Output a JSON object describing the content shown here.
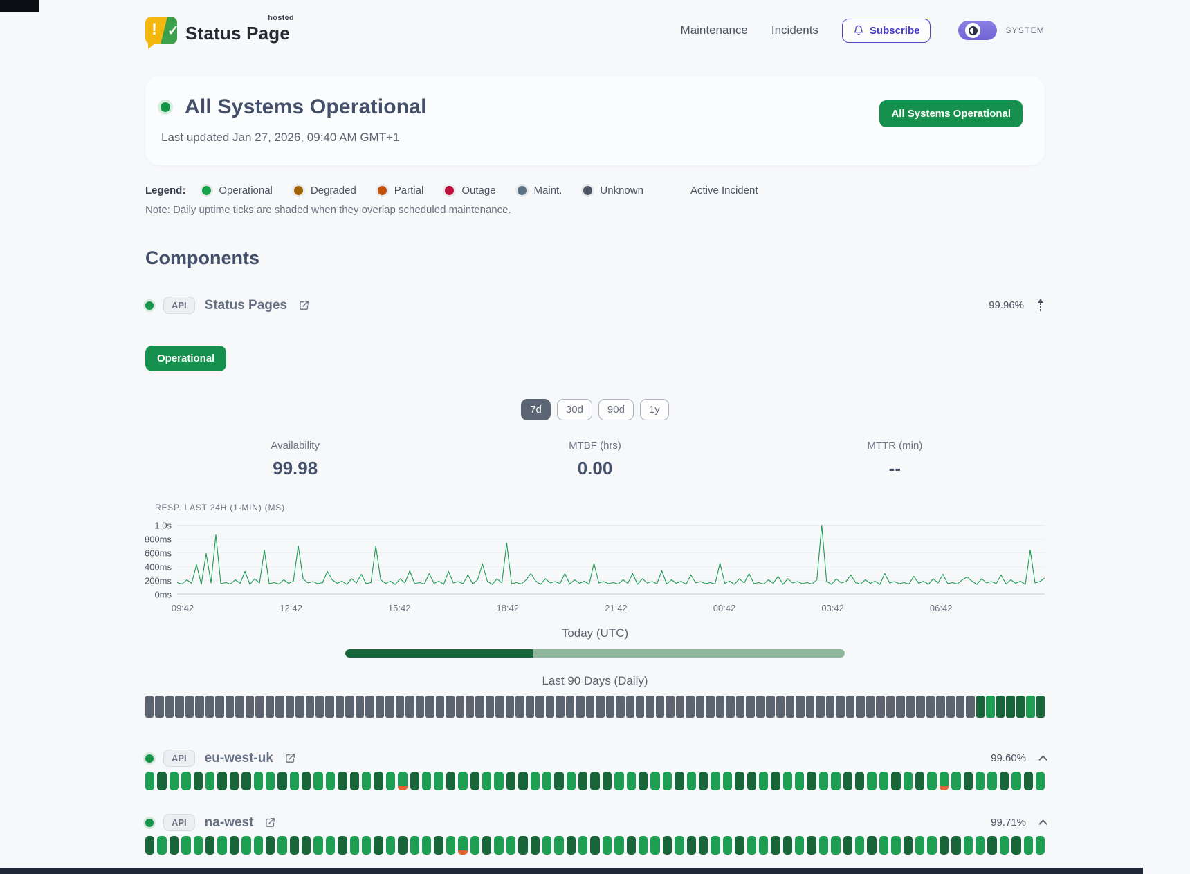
{
  "header": {
    "logo": {
      "title": "Status Page",
      "superscript": "hosted",
      "exclamation": "!",
      "check": "✓"
    },
    "nav": [
      {
        "label": "Maintenance"
      },
      {
        "label": "Incidents"
      }
    ],
    "subscribe_label": "Subscribe",
    "theme_label": "SYSTEM"
  },
  "hero": {
    "title": "All Systems Operational",
    "updated": "Last updated Jan 27, 2026, 09:40 AM GMT+1",
    "badge": "All Systems Operational"
  },
  "legend": {
    "label": "Legend:",
    "items": [
      {
        "label": "Operational",
        "color": "#16a34a"
      },
      {
        "label": "Degraded",
        "color": "#a16207"
      },
      {
        "label": "Partial",
        "color": "#c2510c"
      },
      {
        "label": "Outage",
        "color": "#be123c"
      },
      {
        "label": "Maint.",
        "color": "#5b7285"
      },
      {
        "label": "Unknown",
        "color": "#4b5563"
      }
    ],
    "active_incident_label": "Active Incident",
    "note": "Note: Daily uptime ticks are shaded when they overlap scheduled maintenance."
  },
  "components_section": {
    "title": "Components"
  },
  "tick_colors": {
    "u": "#5c6470",
    "G": "#1e9e52",
    "g": "#176539",
    "p_top": "#1e9e52",
    "p_bottom": "#dd6430"
  },
  "component_main": {
    "badge": "API",
    "name": "Status Pages",
    "uptime": "99.96%",
    "status_label": "Operational",
    "ranges": [
      "7d",
      "30d",
      "90d",
      "1y"
    ],
    "active_range": "7d",
    "stats": [
      {
        "label": "Availability",
        "value": "99.98"
      },
      {
        "label": "MTBF (hrs)",
        "value": "0.00"
      },
      {
        "label": "MTTR (min)",
        "value": "--"
      }
    ],
    "today_label": "Today (UTC)",
    "today_progress_pct": 37.5,
    "history_label": "Last 90 Days (Daily)",
    "history_ticks": "uuuuuuuuuuuuuuuuuuuuuuuuuuuuuuuuuuuuuuuuuuuuuuuuuuuuuuuuuuuuuuuuuuuuuuuuuuuuuuuuuuugGgggGg"
  },
  "chart_data": {
    "type": "line",
    "title": "RESP. LAST 24H (1-MIN) (MS)",
    "line_color": "#1d9a54",
    "ylim": [
      0,
      1000
    ],
    "y_ticks": [
      "1.0s",
      "800ms",
      "600ms",
      "400ms",
      "200ms",
      "0ms"
    ],
    "x_ticks": [
      "09:42",
      "12:42",
      "15:42",
      "18:42",
      "21:42",
      "00:42",
      "03:42",
      "06:42"
    ],
    "unit": "ms",
    "values": [
      170,
      150,
      210,
      160,
      430,
      145,
      590,
      165,
      860,
      155,
      170,
      150,
      210,
      160,
      330,
      145,
      225,
      165,
      640,
      155,
      170,
      150,
      210,
      160,
      190,
      700,
      225,
      165,
      185,
      155,
      170,
      330,
      210,
      160,
      190,
      145,
      225,
      165,
      290,
      155,
      170,
      700,
      210,
      160,
      190,
      145,
      225,
      165,
      340,
      155,
      170,
      150,
      300,
      160,
      190,
      145,
      330,
      165,
      185,
      155,
      280,
      150,
      210,
      440,
      190,
      145,
      225,
      165,
      740,
      155,
      170,
      150,
      210,
      300,
      190,
      145,
      225,
      165,
      185,
      155,
      300,
      150,
      210,
      160,
      190,
      145,
      450,
      165,
      185,
      155,
      170,
      150,
      210,
      160,
      300,
      145,
      225,
      165,
      185,
      155,
      340,
      150,
      210,
      160,
      190,
      145,
      280,
      165,
      185,
      155,
      170,
      150,
      450,
      160,
      190,
      145,
      225,
      165,
      300,
      155,
      170,
      150,
      210,
      160,
      260,
      145,
      225,
      165,
      185,
      155,
      170,
      150,
      210,
      1000,
      190,
      145,
      225,
      165,
      185,
      280,
      170,
      150,
      210,
      160,
      190,
      145,
      300,
      165,
      185,
      155,
      170,
      150,
      260,
      160,
      190,
      145,
      225,
      165,
      290,
      155,
      170,
      150,
      210,
      250,
      190,
      145,
      225,
      165,
      185,
      155,
      280,
      150,
      210,
      160,
      190,
      145,
      640,
      165,
      185,
      235
    ]
  },
  "components": [
    {
      "badge": "API",
      "name": "eu-west-uk",
      "uptime": "99.60%",
      "ticks": "GgGGgGgggGGgGgGGggGgGpgGGgGgGGggGGgGgggGGgGGgGgGGggGgGGgGGggGGgGgGpGgGGgGgG"
    },
    {
      "badge": "API",
      "name": "na-west",
      "uptime": "99.71%",
      "ticks": "gGgGGgGgGGgGggGGgGGgGgGGgGpGgGGggGGgGgGGgGGgGggGGgGGggGgGGgGgGGgGGggGGgGgGG"
    }
  ]
}
